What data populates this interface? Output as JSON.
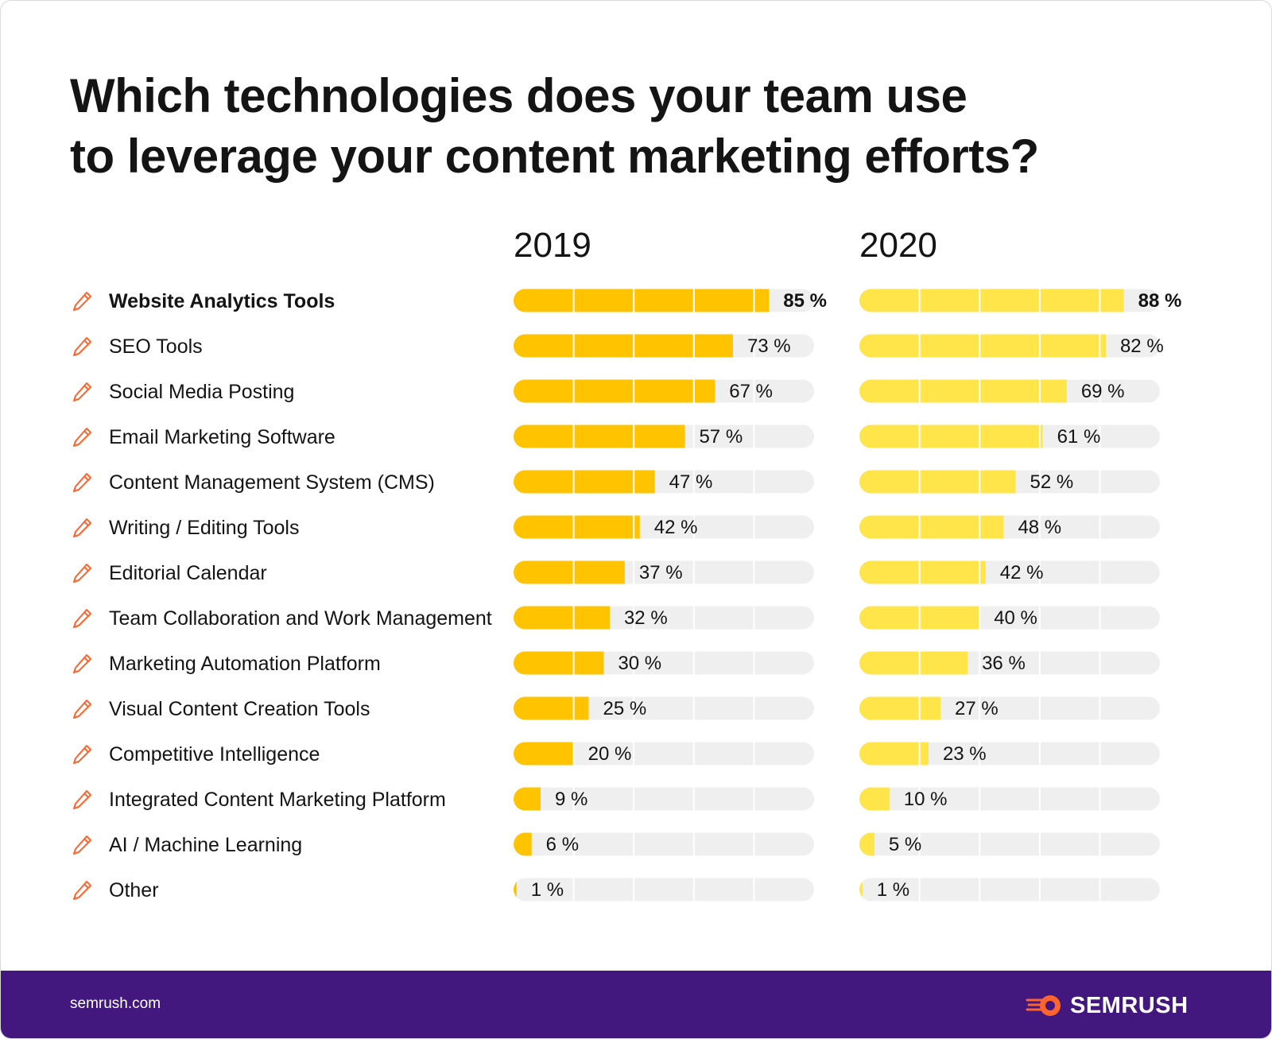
{
  "title_line1": "Which technologies does your team use",
  "title_line2": "to leverage your content marketing efforts?",
  "footer": {
    "site": "semrush.com",
    "brand": "SEMRUSH"
  },
  "colors": {
    "series_2019": "#ffc300",
    "series_2020": "#ffe44a",
    "track": "#efefef",
    "footer_bg": "#42187f",
    "icon": "#ff642d"
  },
  "chart_data": {
    "type": "bar",
    "orientation": "horizontal",
    "title": "Which technologies does your team use to leverage your content marketing efforts?",
    "categories": [
      "Website Analytics Tools",
      "SEO Tools",
      "Social Media Posting",
      "Email Marketing Software",
      "Content Management System (CMS)",
      "Writing / Editing Tools",
      "Editorial Calendar",
      "Team Collaboration and Work Management",
      "Marketing Automation Platform",
      "Visual Content Creation Tools",
      "Competitive Intelligence",
      "Integrated Content Marketing Platform",
      "AI / Machine Learning",
      "Other"
    ],
    "highlighted_category": "Website Analytics Tools",
    "series": [
      {
        "name": "2019",
        "values": [
          85,
          73,
          67,
          57,
          47,
          42,
          37,
          32,
          30,
          25,
          20,
          9,
          6,
          1
        ]
      },
      {
        "name": "2020",
        "values": [
          88,
          82,
          69,
          61,
          52,
          48,
          42,
          40,
          36,
          27,
          23,
          10,
          5,
          1
        ]
      }
    ],
    "value_suffix": " %",
    "xlim": [
      0,
      100
    ],
    "grid": true,
    "legend": "none"
  }
}
